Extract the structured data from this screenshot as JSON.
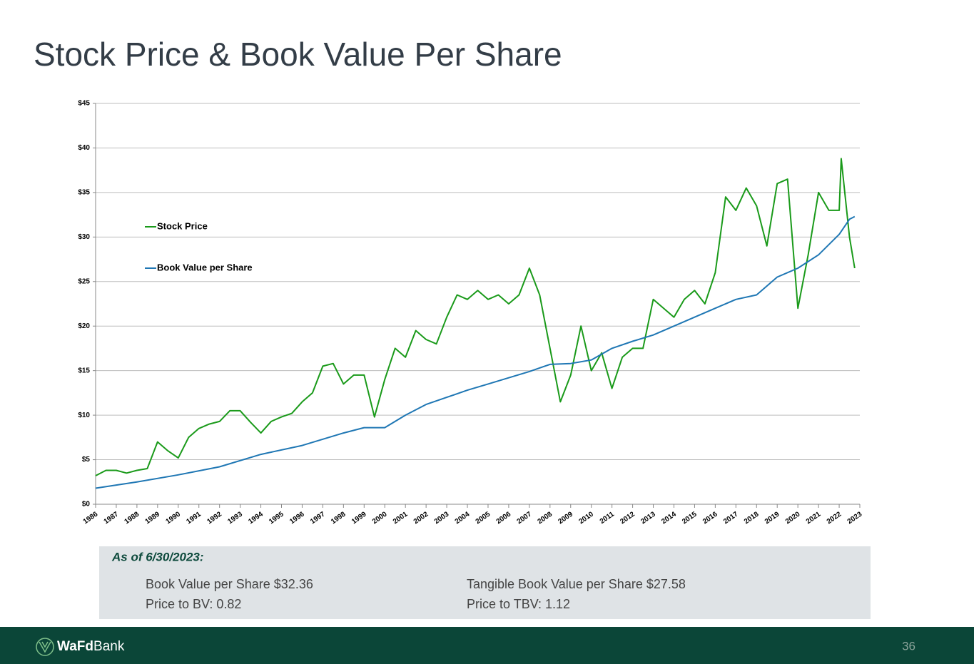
{
  "header": {
    "title": "Stock Price & Book Value Per Share"
  },
  "chart_data": {
    "type": "line",
    "xlim": [
      1986,
      2023
    ],
    "xticks": [
      1986,
      1987,
      1988,
      1989,
      1990,
      1991,
      1992,
      1993,
      1994,
      1995,
      1996,
      1997,
      1998,
      1999,
      2000,
      2001,
      2002,
      2003,
      2004,
      2005,
      2006,
      2007,
      2008,
      2009,
      2010,
      2011,
      2012,
      2013,
      2014,
      2015,
      2016,
      2017,
      2018,
      2019,
      2020,
      2021,
      2022,
      2023
    ],
    "ylim": [
      0,
      45
    ],
    "yticks": [
      {
        "value": 0,
        "label": "$0"
      },
      {
        "value": 5,
        "label": "$5"
      },
      {
        "value": 10,
        "label": "$10"
      },
      {
        "value": 15,
        "label": "$15"
      },
      {
        "value": 20,
        "label": "$20"
      },
      {
        "value": 25,
        "label": "$25"
      },
      {
        "value": 30,
        "label": "$30"
      },
      {
        "value": 35,
        "label": "$35"
      },
      {
        "value": 40,
        "label": "$40"
      },
      {
        "value": 45,
        "label": "$45"
      }
    ],
    "grid": true,
    "legend": "left",
    "series": [
      {
        "name": "Stock Price",
        "color": "#1a9a1a",
        "x": [
          1986,
          1986.5,
          1987,
          1987.5,
          1988,
          1988.5,
          1989,
          1989.5,
          1990,
          1990.5,
          1991,
          1991.5,
          1992,
          1992.5,
          1993,
          1993.5,
          1994,
          1994.5,
          1995,
          1995.5,
          1996,
          1996.5,
          1997,
          1997.5,
          1998,
          1998.5,
          1999,
          1999.5,
          2000,
          2000.5,
          2001,
          2001.5,
          2002,
          2002.5,
          2003,
          2003.5,
          2004,
          2004.5,
          2005,
          2005.5,
          2006,
          2006.5,
          2007,
          2007.5,
          2008,
          2008.5,
          2009,
          2009.5,
          2010,
          2010.5,
          2011,
          2011.5,
          2012,
          2012.5,
          2013,
          2013.5,
          2014,
          2014.5,
          2015,
          2015.5,
          2016,
          2016.5,
          2017,
          2017.5,
          2018,
          2018.5,
          2019,
          2019.5,
          2020,
          2020.5,
          2021,
          2021.5,
          2022,
          2022.1,
          2022.5,
          2022.75
        ],
        "values": [
          3.2,
          3.8,
          3.8,
          3.5,
          3.8,
          4.0,
          7.0,
          6.0,
          5.2,
          7.5,
          8.5,
          9.0,
          9.3,
          10.5,
          10.5,
          9.2,
          8.0,
          9.3,
          9.8,
          10.2,
          11.5,
          12.5,
          15.5,
          15.8,
          13.5,
          14.5,
          14.5,
          9.8,
          14.0,
          17.5,
          16.5,
          19.5,
          18.5,
          18.0,
          21.0,
          23.5,
          23.0,
          24.0,
          23.0,
          23.5,
          22.5,
          23.5,
          26.5,
          23.5,
          17.5,
          11.5,
          14.5,
          20.0,
          15.0,
          17.0,
          13.0,
          16.5,
          17.5,
          17.5,
          23.0,
          22.0,
          21.0,
          23.0,
          24.0,
          22.5,
          26.0,
          34.5,
          33.0,
          35.5,
          33.5,
          29.0,
          36.0,
          36.5,
          22.0,
          28.0,
          35.0,
          33.0,
          33.0,
          38.8,
          30.0,
          26.5
        ]
      },
      {
        "name": "Book Value per Share",
        "color": "#1f77b4",
        "x": [
          1986,
          1988,
          1990,
          1992,
          1994,
          1996,
          1998,
          1999,
          2000,
          2001,
          2002,
          2003,
          2004,
          2005,
          2006,
          2007,
          2008,
          2009,
          2010,
          2011,
          2012,
          2013,
          2014,
          2015,
          2016,
          2017,
          2018,
          2019,
          2020,
          2021,
          2022,
          2022.5,
          2022.75
        ],
        "values": [
          1.8,
          2.5,
          3.3,
          4.2,
          5.6,
          6.6,
          8.0,
          8.6,
          8.6,
          10.0,
          11.2,
          12.0,
          12.8,
          13.5,
          14.2,
          14.9,
          15.7,
          15.8,
          16.2,
          17.5,
          18.3,
          19.0,
          20.0,
          21.0,
          22.0,
          23.0,
          23.5,
          25.5,
          26.5,
          28.0,
          30.3,
          32.0,
          32.3
        ]
      }
    ]
  },
  "summary": {
    "heading": "As of 6/30/2023:",
    "left": [
      "Book Value per Share $32.36",
      "Price to BV:  0.82"
    ],
    "right": [
      "Tangible Book Value per Share $27.58",
      "Price to TBV:  1.12"
    ]
  },
  "footer": {
    "logo_bold": "WaFd",
    "logo_regular": "Bank",
    "page": "36"
  }
}
